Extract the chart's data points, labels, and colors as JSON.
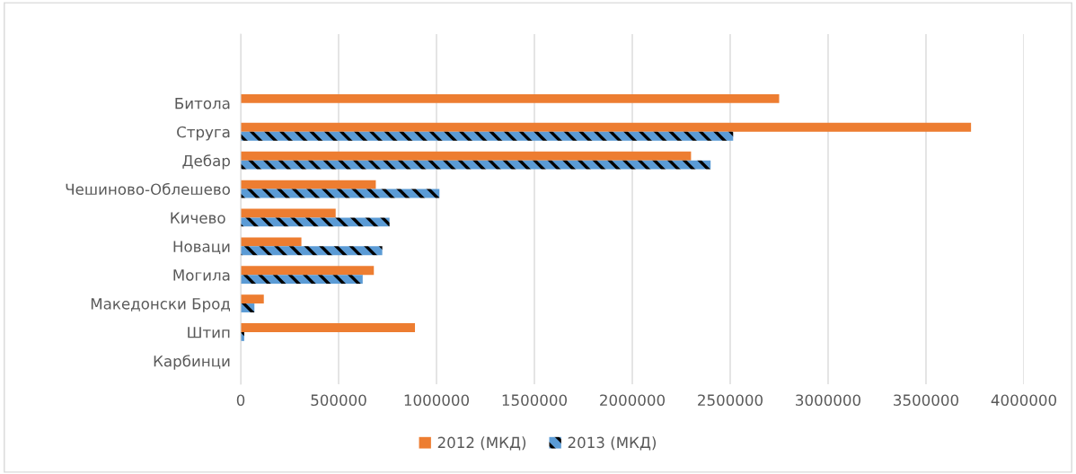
{
  "chart_data": {
    "type": "bar",
    "orientation": "horizontal",
    "categories": [
      "Битола",
      "Струга",
      "Дебар",
      "Чешиново-Облешево",
      "Кичево ",
      "Новаци",
      "Могила",
      "Македонски Брод",
      "Штип",
      "Карбинци"
    ],
    "series": [
      {
        "name": "2012 (МКД)",
        "color": "#ed7d31",
        "values": [
          2750000,
          3730000,
          2300000,
          690000,
          485000,
          310000,
          680000,
          118000,
          890000,
          0
        ]
      },
      {
        "name": "2013 (МКД)",
        "color": "#5b9bd5",
        "values": [
          null,
          2515000,
          2400000,
          1015000,
          760000,
          723000,
          623000,
          70000,
          18000,
          0
        ]
      }
    ],
    "xlim": [
      0,
      4000000
    ],
    "xticks": [
      0,
      500000,
      1000000,
      1500000,
      2000000,
      2500000,
      3000000,
      3500000,
      4000000
    ],
    "grid": "x",
    "legend": "bottom"
  }
}
